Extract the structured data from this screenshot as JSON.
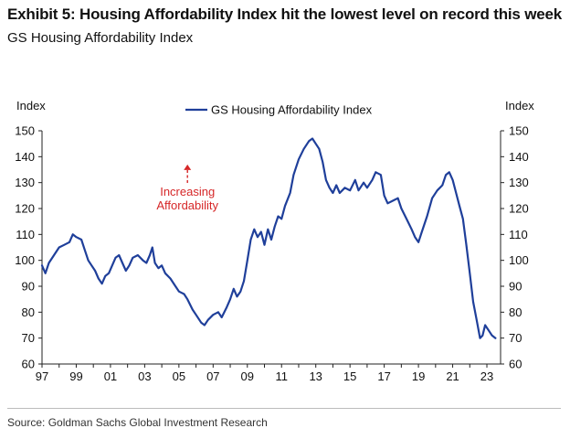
{
  "header": {
    "title": "Exhibit 5: Housing Affordability Index hit the lowest level on record this week",
    "subtitle": "GS Housing Affordability Index"
  },
  "footer": {
    "source": "Source: Goldman Sachs Global Investment Research"
  },
  "colors": {
    "series": "#1f3f9a",
    "annotation": "#d62728",
    "axis": "#222222"
  },
  "chart_data": {
    "type": "line",
    "title": "",
    "ylabel_left": "Index",
    "ylabel_right": "Index",
    "xlim": [
      1997,
      2023.8
    ],
    "ylim": [
      60,
      150
    ],
    "yticks": [
      60,
      70,
      80,
      90,
      100,
      110,
      120,
      130,
      140,
      150
    ],
    "xticks": [
      {
        "label": "97",
        "x": 1997
      },
      {
        "label": "99",
        "x": 1999
      },
      {
        "label": "01",
        "x": 2001
      },
      {
        "label": "03",
        "x": 2003
      },
      {
        "label": "05",
        "x": 2005
      },
      {
        "label": "07",
        "x": 2007
      },
      {
        "label": "09",
        "x": 2009
      },
      {
        "label": "11",
        "x": 2011
      },
      {
        "label": "13",
        "x": 2013
      },
      {
        "label": "15",
        "x": 2015
      },
      {
        "label": "17",
        "x": 2017
      },
      {
        "label": "19",
        "x": 2019
      },
      {
        "label": "21",
        "x": 2021
      },
      {
        "label": "23",
        "x": 2023
      }
    ],
    "grid": false,
    "legend": {
      "position": "top-center",
      "entries": [
        "GS Housing Affordability Index"
      ]
    },
    "annotation": {
      "text_lines": [
        "Increasing",
        "Affordability"
      ],
      "arrow": "up",
      "x": 2005.5,
      "y_from": 120,
      "y_to": 137
    },
    "series": [
      {
        "name": "GS Housing Affordability Index",
        "points": [
          [
            1997.0,
            98
          ],
          [
            1997.2,
            95
          ],
          [
            1997.4,
            99
          ],
          [
            1997.7,
            102
          ],
          [
            1998.0,
            105
          ],
          [
            1998.3,
            106
          ],
          [
            1998.6,
            107
          ],
          [
            1998.8,
            110
          ],
          [
            1999.0,
            109
          ],
          [
            1999.3,
            108
          ],
          [
            1999.5,
            104
          ],
          [
            1999.7,
            100
          ],
          [
            1999.9,
            98
          ],
          [
            2000.1,
            96
          ],
          [
            2000.3,
            93
          ],
          [
            2000.5,
            91
          ],
          [
            2000.7,
            94
          ],
          [
            2000.9,
            95
          ],
          [
            2001.1,
            98
          ],
          [
            2001.3,
            101
          ],
          [
            2001.5,
            102
          ],
          [
            2001.7,
            99
          ],
          [
            2001.9,
            96
          ],
          [
            2002.1,
            98
          ],
          [
            2002.3,
            101
          ],
          [
            2002.6,
            102
          ],
          [
            2002.9,
            100
          ],
          [
            2003.1,
            99
          ],
          [
            2003.3,
            102
          ],
          [
            2003.45,
            105
          ],
          [
            2003.6,
            99
          ],
          [
            2003.8,
            97
          ],
          [
            2004.0,
            98
          ],
          [
            2004.2,
            95
          ],
          [
            2004.5,
            93
          ],
          [
            2004.8,
            90
          ],
          [
            2005.0,
            88
          ],
          [
            2005.3,
            87
          ],
          [
            2005.5,
            85
          ],
          [
            2005.8,
            81
          ],
          [
            2006.0,
            79
          ],
          [
            2006.3,
            76
          ],
          [
            2006.5,
            75
          ],
          [
            2006.7,
            77
          ],
          [
            2007.0,
            79
          ],
          [
            2007.3,
            80
          ],
          [
            2007.5,
            78
          ],
          [
            2007.8,
            82
          ],
          [
            2008.0,
            85
          ],
          [
            2008.2,
            89
          ],
          [
            2008.4,
            86
          ],
          [
            2008.6,
            88
          ],
          [
            2008.8,
            92
          ],
          [
            2009.0,
            100
          ],
          [
            2009.2,
            108
          ],
          [
            2009.4,
            112
          ],
          [
            2009.6,
            109
          ],
          [
            2009.8,
            111
          ],
          [
            2010.0,
            106
          ],
          [
            2010.2,
            112
          ],
          [
            2010.4,
            108
          ],
          [
            2010.6,
            113
          ],
          [
            2010.8,
            117
          ],
          [
            2011.0,
            116
          ],
          [
            2011.2,
            121
          ],
          [
            2011.5,
            126
          ],
          [
            2011.7,
            133
          ],
          [
            2012.0,
            139
          ],
          [
            2012.3,
            143
          ],
          [
            2012.6,
            146
          ],
          [
            2012.8,
            147
          ],
          [
            2013.0,
            145
          ],
          [
            2013.2,
            143
          ],
          [
            2013.4,
            138
          ],
          [
            2013.6,
            131
          ],
          [
            2013.8,
            128
          ],
          [
            2014.0,
            126
          ],
          [
            2014.2,
            129
          ],
          [
            2014.4,
            126
          ],
          [
            2014.7,
            128
          ],
          [
            2015.0,
            127
          ],
          [
            2015.3,
            131
          ],
          [
            2015.5,
            127
          ],
          [
            2015.8,
            130
          ],
          [
            2016.0,
            128
          ],
          [
            2016.3,
            131
          ],
          [
            2016.5,
            134
          ],
          [
            2016.8,
            133
          ],
          [
            2017.0,
            125
          ],
          [
            2017.2,
            122
          ],
          [
            2017.5,
            123
          ],
          [
            2017.8,
            124
          ],
          [
            2018.0,
            120
          ],
          [
            2018.3,
            116
          ],
          [
            2018.6,
            112
          ],
          [
            2018.8,
            109
          ],
          [
            2019.0,
            107
          ],
          [
            2019.2,
            111
          ],
          [
            2019.5,
            117
          ],
          [
            2019.8,
            124
          ],
          [
            2020.1,
            127
          ],
          [
            2020.4,
            129
          ],
          [
            2020.6,
            133
          ],
          [
            2020.8,
            134
          ],
          [
            2021.0,
            131
          ],
          [
            2021.2,
            126
          ],
          [
            2021.4,
            121
          ],
          [
            2021.6,
            116
          ],
          [
            2021.8,
            106
          ],
          [
            2022.0,
            95
          ],
          [
            2022.2,
            84
          ],
          [
            2022.4,
            77
          ],
          [
            2022.6,
            70
          ],
          [
            2022.75,
            71
          ],
          [
            2022.9,
            75
          ],
          [
            2023.1,
            73
          ],
          [
            2023.3,
            71
          ],
          [
            2023.5,
            70
          ]
        ]
      }
    ]
  },
  "footer_note": ""
}
